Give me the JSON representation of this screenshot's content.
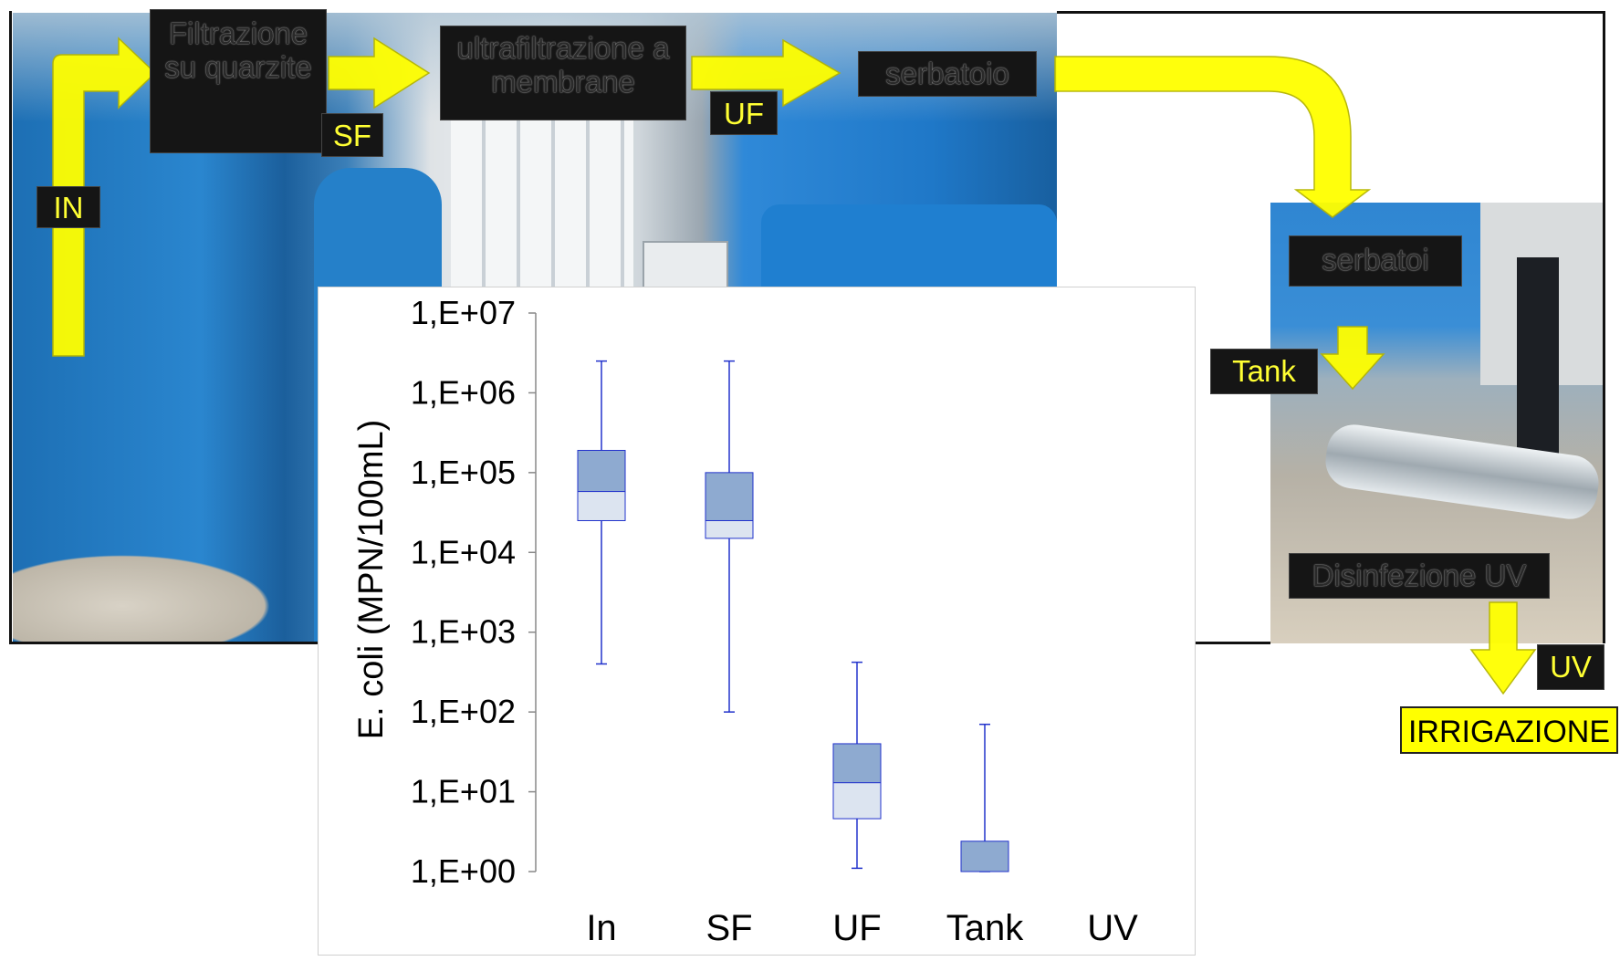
{
  "flow_labels": {
    "filtrazione": "Filtrazione su quarzite",
    "ultrafiltrazione": "ultrafiltrazione a membrane",
    "serbatoio": "serbatoio",
    "serbatoi": "serbatoi",
    "disinfezione": "Disinfezione UV",
    "in": "IN",
    "sf": "SF",
    "uf": "UF",
    "tank": "Tank",
    "uv": "UV",
    "irrigazione": "IRRIGAZIONE"
  },
  "colors": {
    "arrow_yellow": "#ffff00",
    "box_fill": "#8eaad0",
    "box_fill_light": "#dce4f0",
    "whisker": "#2233cc"
  },
  "chart_data": {
    "type": "box",
    "ylabel": "E. coli (MPN/100mL)",
    "yscale": "log",
    "ylim": [
      1,
      10000000
    ],
    "yticks": [
      "1,E+00",
      "1,E+01",
      "1,E+02",
      "1,E+03",
      "1,E+04",
      "1,E+05",
      "1,E+06",
      "1,E+07"
    ],
    "categories": [
      "In",
      "SF",
      "UF",
      "Tank",
      "UV"
    ],
    "boxes": [
      {
        "category": "In",
        "min": 400,
        "q1": 25000,
        "median": 58000,
        "q3": 190000,
        "max": 2500000
      },
      {
        "category": "SF",
        "min": 100,
        "q1": 15000,
        "median": 25000,
        "q3": 100000,
        "max": 2500000
      },
      {
        "category": "UF",
        "min": 1.1,
        "q1": 4.6,
        "median": 13,
        "q3": 40,
        "max": 420
      },
      {
        "category": "Tank",
        "min": 1,
        "q1": 1,
        "median": 1,
        "q3": 2.4,
        "max": 70
      },
      {
        "category": "UV",
        "min": null,
        "q1": null,
        "median": null,
        "q3": null,
        "max": null
      }
    ]
  }
}
